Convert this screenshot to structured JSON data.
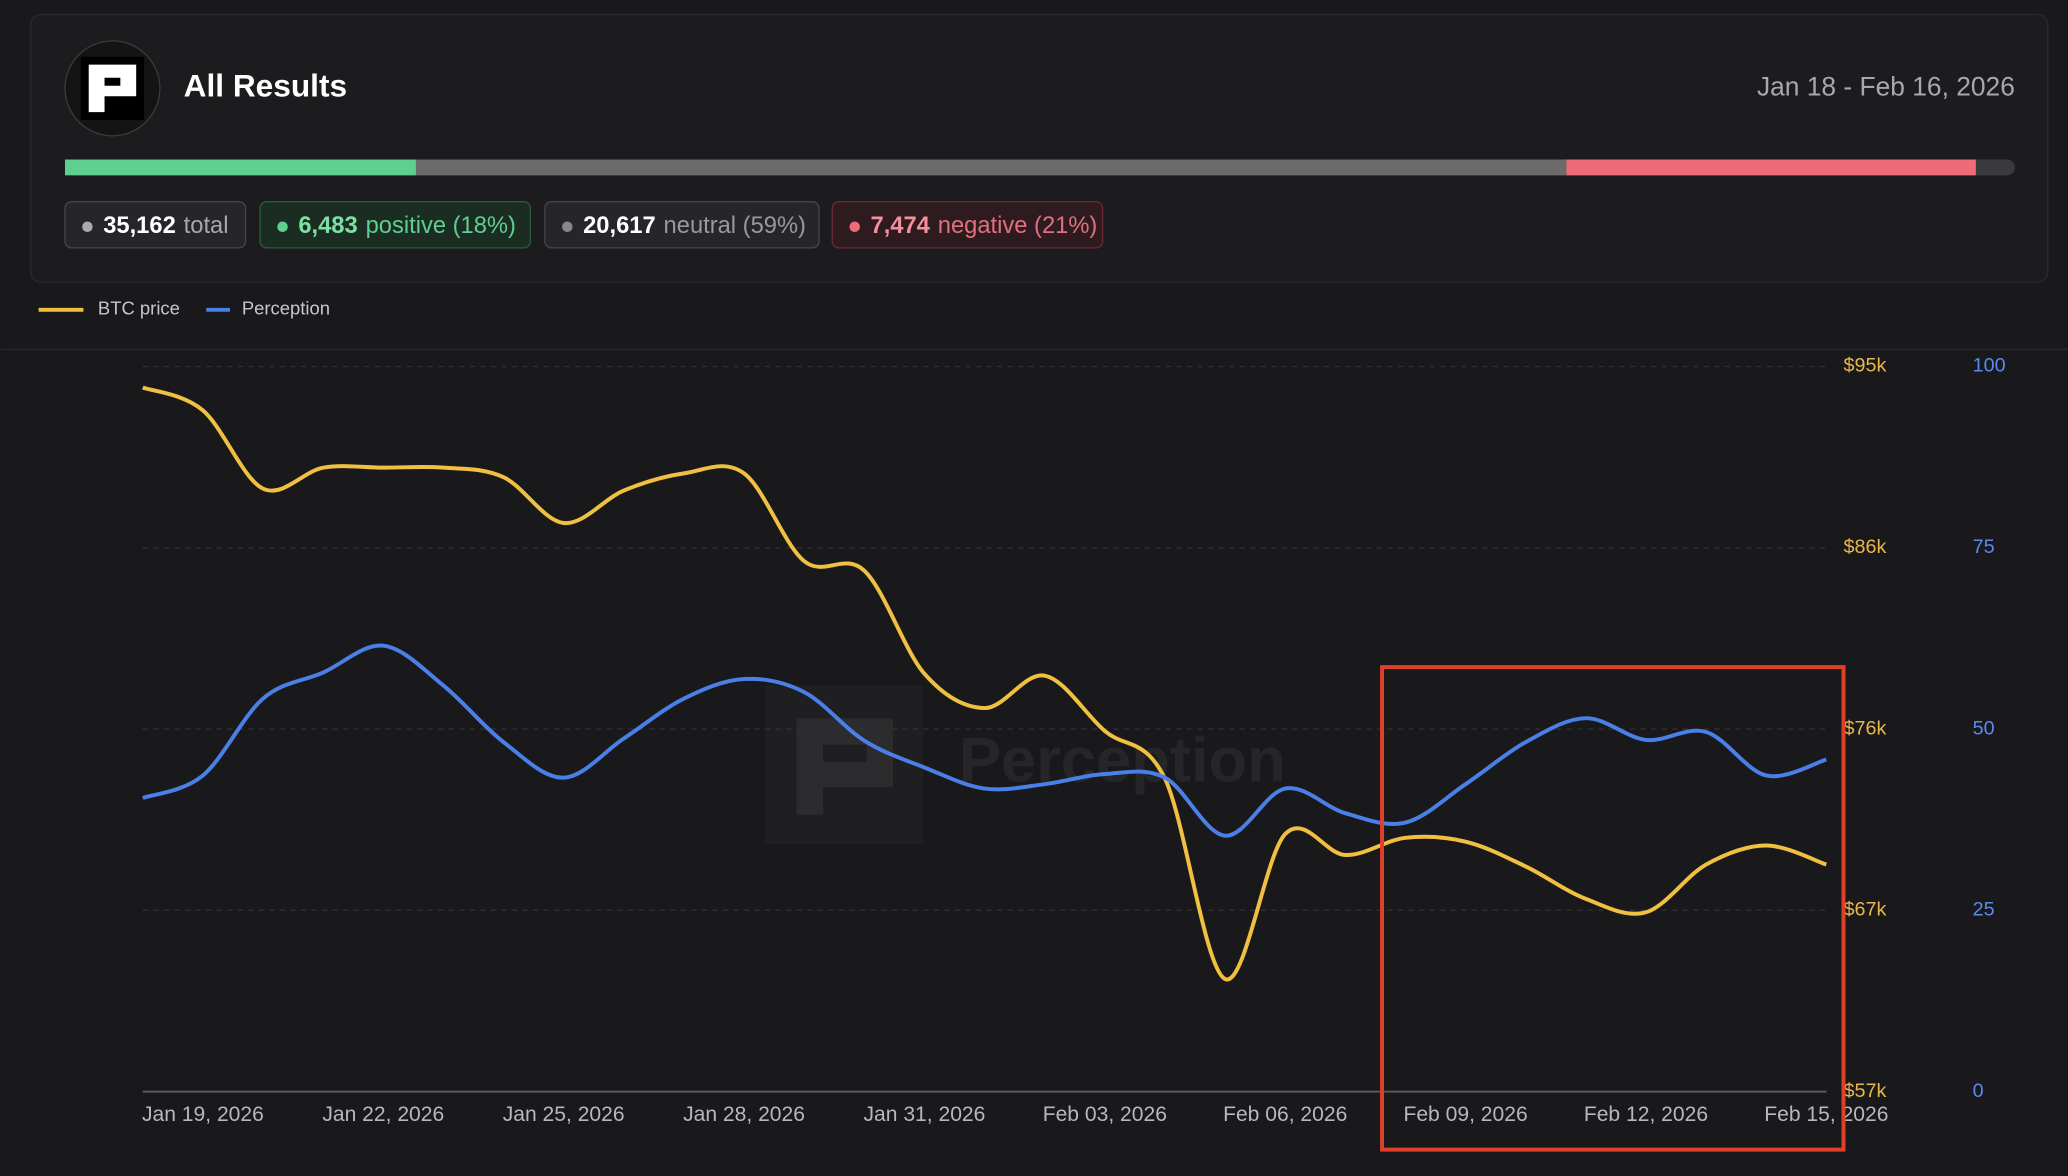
{
  "header": {
    "title": "All Results",
    "date_range": "Jan 18 - Feb 16, 2026"
  },
  "summary": {
    "total": {
      "count": "35,162",
      "label": "total"
    },
    "segments": [
      {
        "count": "6,483",
        "label": "positive (18%)",
        "share": 18,
        "color": "#5fcf8f"
      },
      {
        "count": "20,617",
        "label": "neutral (59%)",
        "share": 59,
        "color": "#6b6b6b"
      },
      {
        "count": "7,474",
        "label": "negative (21%)",
        "share": 21,
        "color": "#ee6b7a"
      }
    ]
  },
  "watermark": "Perception",
  "chart_data": {
    "type": "line",
    "categories": [
      null,
      "Jan 19, 2026",
      null,
      null,
      "Jan 22, 2026",
      null,
      null,
      "Jan 25, 2026",
      null,
      null,
      "Jan 28, 2026",
      null,
      null,
      "Jan 31, 2026",
      null,
      null,
      "Feb 03, 2026",
      null,
      null,
      "Feb 06, 2026",
      null,
      null,
      "Feb 09, 2026",
      null,
      null,
      "Feb 12, 2026",
      null,
      null,
      "Feb 15, 2026"
    ],
    "series": [
      {
        "name": "BTC price",
        "color": "#f0c040",
        "values": [
          93900,
          92700,
          88600,
          89700,
          89700,
          89700,
          89200,
          86800,
          88500,
          89400,
          89400,
          84800,
          84300,
          78900,
          77100,
          78800,
          75900,
          73400,
          62900,
          70500,
          69400,
          70300,
          70100,
          68800,
          67100,
          66400,
          68900,
          69900,
          68900
        ]
      },
      {
        "name": "Perception",
        "color": "#4a7fe8",
        "axis": "y2",
        "values": [
          40.5,
          43.6,
          54.2,
          57.8,
          61.5,
          56,
          48.2,
          43.3,
          48.7,
          54.2,
          56.9,
          55.1,
          48.4,
          44.7,
          41.8,
          42.4,
          43.8,
          43.3,
          35.3,
          41.8,
          38.4,
          37.1,
          42.4,
          48.2,
          51.5,
          48.5,
          49.6,
          43.6,
          45.8
        ]
      }
    ],
    "ylim": [
      57000,
      95000
    ],
    "yticks": [
      {
        "value": 57000,
        "label": "$57k"
      },
      {
        "value": 66500,
        "label": "$67k"
      },
      {
        "value": 76000,
        "label": "$76k"
      },
      {
        "value": 85500,
        "label": "$86k"
      },
      {
        "value": 95000,
        "label": "$95k"
      }
    ],
    "y2lim": [
      0,
      100
    ],
    "y2ticks": [
      0,
      25,
      50,
      75,
      100
    ],
    "grid": true
  }
}
